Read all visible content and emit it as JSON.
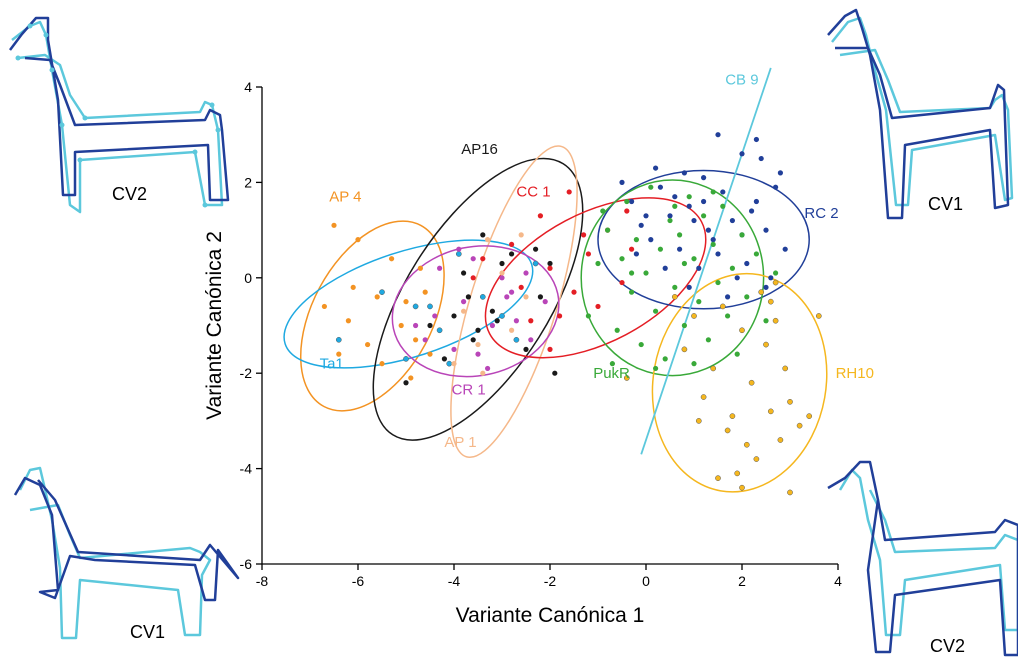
{
  "chart_data": {
    "type": "scatter",
    "xlabel": "Variante Canónica 1",
    "ylabel": "Variante Canónica 2",
    "xlim": [
      -8,
      4
    ],
    "ylim": [
      -6,
      4
    ],
    "xticks": [
      "-8",
      "-6",
      "-4",
      "-2",
      "0",
      "2",
      "4"
    ],
    "yticks": [
      "-6",
      "-4",
      "-2",
      "0",
      "2",
      "4"
    ],
    "grid": false,
    "series": [
      {
        "name": "AP 4",
        "color": "#f39323",
        "label_at": [
          -6.6,
          1.6
        ],
        "ellipse": {
          "cx": -5.7,
          "cy": -0.8,
          "rx": 2.15,
          "ry": 1.25,
          "angle": 62
        },
        "points": [
          [
            -6.5,
            1.1
          ],
          [
            -6.0,
            0.8
          ],
          [
            -6.1,
            -0.2
          ],
          [
            -6.7,
            -0.6
          ],
          [
            -6.2,
            -0.9
          ],
          [
            -5.8,
            -1.4
          ],
          [
            -5.0,
            -0.5
          ],
          [
            -5.5,
            -1.8
          ],
          [
            -4.9,
            -2.1
          ],
          [
            -4.6,
            -0.3
          ],
          [
            -5.3,
            0.4
          ],
          [
            -4.8,
            -1.3
          ],
          [
            -6.4,
            -1.6
          ],
          [
            -5.1,
            -1.0
          ],
          [
            -4.5,
            -1.6
          ],
          [
            -5.6,
            -0.4
          ],
          [
            -4.7,
            0.2
          ]
        ]
      },
      {
        "name": "Ta1",
        "color": "#1fa9e1",
        "label_at": [
          -6.8,
          -1.9
        ],
        "ellipse": {
          "cx": -4.95,
          "cy": -0.55,
          "rx": 2.7,
          "ry": 1.1,
          "angle": 18
        },
        "points": [
          [
            -6.4,
            -1.3
          ],
          [
            -5.5,
            -0.3
          ],
          [
            -4.8,
            -0.6
          ],
          [
            -4.1,
            -1.8
          ],
          [
            -3.4,
            -0.4
          ],
          [
            -2.7,
            -1.3
          ],
          [
            -2.3,
            0.3
          ],
          [
            -3.9,
            0.5
          ],
          [
            -5.0,
            -1.7
          ],
          [
            -4.3,
            -1.1
          ],
          [
            -3.0,
            -0.8
          ],
          [
            -4.5,
            -0.6
          ]
        ]
      },
      {
        "name": "AP16",
        "color": "#1a1a1a",
        "label_at": [
          -3.85,
          2.6
        ],
        "ellipse": {
          "cx": -3.5,
          "cy": -0.45,
          "rx": 3.35,
          "ry": 1.5,
          "angle": 58
        },
        "points": [
          [
            -5.0,
            -2.2
          ],
          [
            -4.5,
            -1.0
          ],
          [
            -4.0,
            -0.8
          ],
          [
            -3.7,
            -0.4
          ],
          [
            -3.5,
            -1.1
          ],
          [
            -3.2,
            -0.7
          ],
          [
            -3.0,
            0.3
          ],
          [
            -2.8,
            0.5
          ],
          [
            -2.3,
            0.6
          ],
          [
            -2.0,
            0.3
          ],
          [
            -3.4,
            0.9
          ],
          [
            -2.5,
            -1.5
          ],
          [
            -1.9,
            -2.0
          ],
          [
            -3.8,
            0.1
          ],
          [
            -4.2,
            -1.7
          ],
          [
            -3.6,
            -1.3
          ],
          [
            -2.2,
            -0.4
          ],
          [
            -3.1,
            -0.9
          ]
        ]
      },
      {
        "name": "AP 1",
        "color": "#f5b88a",
        "label_at": [
          -4.2,
          -3.55
        ],
        "ellipse": {
          "cx": -2.75,
          "cy": -0.5,
          "rx": 3.4,
          "ry": 0.9,
          "angle": 73
        },
        "points": [
          [
            -4.0,
            -1.8
          ],
          [
            -3.4,
            -2.0
          ],
          [
            -3.3,
            0.8
          ],
          [
            -3.0,
            0.1
          ],
          [
            -2.5,
            -0.4
          ],
          [
            -2.2,
            1.3
          ],
          [
            -2.8,
            -1.1
          ],
          [
            -3.5,
            -1.4
          ],
          [
            -2.6,
            0.9
          ],
          [
            -3.8,
            -0.7
          ]
        ]
      },
      {
        "name": "CR 1",
        "color": "#b945b8",
        "label_at": [
          -4.05,
          -2.45
        ],
        "ellipse": {
          "cx": -3.55,
          "cy": -0.7,
          "rx": 1.75,
          "ry": 1.35,
          "angle": 12
        },
        "points": [
          [
            -4.8,
            -1.0
          ],
          [
            -4.6,
            -1.3
          ],
          [
            -4.3,
            0.2
          ],
          [
            -3.8,
            -0.5
          ],
          [
            -3.5,
            -1.6
          ],
          [
            -3.2,
            -1.0
          ],
          [
            -3.0,
            0.0
          ],
          [
            -2.8,
            -0.3
          ],
          [
            -2.5,
            0.1
          ],
          [
            -2.1,
            -0.5
          ],
          [
            -4.0,
            -1.5
          ],
          [
            -3.3,
            -1.9
          ],
          [
            -2.7,
            -0.9
          ],
          [
            -3.6,
            0.4
          ],
          [
            -2.4,
            -1.3
          ],
          [
            -4.4,
            -0.8
          ],
          [
            -3.9,
            0.6
          ],
          [
            -2.9,
            -0.4
          ]
        ]
      },
      {
        "name": "CC 1",
        "color": "#e41e25",
        "label_at": [
          -2.7,
          1.7
        ],
        "ellipse": {
          "cx": -1.05,
          "cy": 0.0,
          "rx": 2.5,
          "ry": 1.35,
          "angle": 28
        },
        "points": [
          [
            -1.6,
            1.8
          ],
          [
            -2.2,
            1.3
          ],
          [
            -2.8,
            0.7
          ],
          [
            -3.4,
            0.4
          ],
          [
            -2.0,
            0.2
          ],
          [
            -1.2,
            0.5
          ],
          [
            -0.8,
            1.0
          ],
          [
            -0.4,
            1.4
          ],
          [
            -1.5,
            -0.3
          ],
          [
            -2.4,
            -0.9
          ],
          [
            -2.0,
            -1.5
          ],
          [
            -1.0,
            -0.6
          ],
          [
            -0.5,
            -0.1
          ],
          [
            -1.8,
            -0.8
          ],
          [
            -2.6,
            -0.2
          ],
          [
            -0.3,
            0.6
          ],
          [
            -1.3,
            0.9
          ],
          [
            -3.6,
            0.0
          ]
        ]
      },
      {
        "name": "RC 2",
        "color": "#213f99",
        "label_at": [
          3.3,
          1.25
        ],
        "ellipse": {
          "cx": 1.2,
          "cy": 0.8,
          "rx": 2.2,
          "ry": 1.45,
          "angle": 0
        },
        "points": [
          [
            -0.5,
            2.0
          ],
          [
            -0.3,
            1.6
          ],
          [
            0.0,
            1.3
          ],
          [
            0.1,
            0.8
          ],
          [
            0.3,
            1.9
          ],
          [
            0.5,
            1.3
          ],
          [
            0.7,
            0.6
          ],
          [
            0.9,
            1.5
          ],
          [
            1.1,
            0.2
          ],
          [
            1.2,
            2.1
          ],
          [
            1.3,
            1.0
          ],
          [
            1.5,
            0.5
          ],
          [
            1.6,
            1.8
          ],
          [
            1.8,
            1.2
          ],
          [
            2.0,
            0.9
          ],
          [
            2.1,
            0.3
          ],
          [
            2.3,
            1.6
          ],
          [
            2.4,
            2.5
          ],
          [
            2.5,
            1.0
          ],
          [
            2.6,
            0.0
          ],
          [
            2.7,
            1.9
          ],
          [
            2.8,
            2.2
          ],
          [
            2.0,
            2.6
          ],
          [
            1.7,
            -0.4
          ],
          [
            1.4,
            0.8
          ],
          [
            0.8,
            2.2
          ],
          [
            0.4,
            0.2
          ],
          [
            -0.2,
            0.5
          ],
          [
            2.2,
            1.4
          ],
          [
            1.0,
            1.2
          ],
          [
            1.9,
            0.0
          ],
          [
            2.5,
            -0.2
          ],
          [
            2.9,
            0.6
          ],
          [
            0.6,
            1.7
          ],
          [
            1.5,
            3.0
          ],
          [
            2.3,
            2.9
          ],
          [
            0.2,
            2.3
          ],
          [
            1.2,
            1.6
          ],
          [
            0.9,
            -0.2
          ],
          [
            -0.1,
            1.1
          ]
        ]
      },
      {
        "name": "PukR",
        "color": "#39a939",
        "label_at": [
          -1.1,
          -2.1
        ],
        "ellipse": {
          "cx": 0.55,
          "cy": 0.0,
          "rx": 1.9,
          "ry": 2.05,
          "angle": 0
        },
        "points": [
          [
            -1.2,
            -0.8
          ],
          [
            -1.0,
            0.3
          ],
          [
            -0.8,
            1.0
          ],
          [
            -0.6,
            -1.1
          ],
          [
            -0.5,
            0.4
          ],
          [
            -0.4,
            1.6
          ],
          [
            -0.3,
            -0.3
          ],
          [
            -0.2,
            0.8
          ],
          [
            -0.1,
            -1.4
          ],
          [
            0.0,
            0.1
          ],
          [
            0.1,
            1.9
          ],
          [
            0.2,
            -0.7
          ],
          [
            0.3,
            0.6
          ],
          [
            0.4,
            -1.7
          ],
          [
            0.5,
            1.2
          ],
          [
            0.6,
            -0.2
          ],
          [
            0.7,
            0.9
          ],
          [
            0.8,
            -1.0
          ],
          [
            0.9,
            1.7
          ],
          [
            1.0,
            0.4
          ],
          [
            1.1,
            -0.5
          ],
          [
            1.2,
            1.3
          ],
          [
            1.3,
            -1.3
          ],
          [
            1.4,
            0.7
          ],
          [
            1.5,
            -0.1
          ],
          [
            1.6,
            1.5
          ],
          [
            1.7,
            -0.8
          ],
          [
            1.8,
            0.2
          ],
          [
            1.9,
            -1.6
          ],
          [
            2.0,
            0.9
          ],
          [
            2.1,
            -0.4
          ],
          [
            2.3,
            0.5
          ],
          [
            2.5,
            -0.9
          ],
          [
            2.7,
            0.1
          ],
          [
            -0.7,
            -1.8
          ],
          [
            0.2,
            -1.9
          ],
          [
            1.0,
            -1.8
          ],
          [
            0.6,
            1.5
          ],
          [
            1.4,
            1.8
          ],
          [
            -0.9,
            1.4
          ],
          [
            -0.3,
            0.1
          ],
          [
            0.8,
            0.3
          ]
        ]
      },
      {
        "name": "RH10",
        "color": "#f5b71f",
        "label_at": [
          3.95,
          -2.1
        ],
        "ellipse": {
          "cx": 1.95,
          "cy": -2.2,
          "rx": 1.8,
          "ry": 2.3,
          "angle": -10
        },
        "points": [
          [
            0.6,
            -0.4
          ],
          [
            0.8,
            -1.5
          ],
          [
            1.0,
            -0.8
          ],
          [
            1.2,
            -2.5
          ],
          [
            1.4,
            -1.9
          ],
          [
            1.6,
            -0.6
          ],
          [
            1.8,
            -2.9
          ],
          [
            2.0,
            -1.1
          ],
          [
            2.1,
            -3.5
          ],
          [
            2.2,
            -2.2
          ],
          [
            2.4,
            -0.3
          ],
          [
            2.5,
            -1.4
          ],
          [
            2.6,
            -2.8
          ],
          [
            2.7,
            -0.9
          ],
          [
            2.8,
            -3.4
          ],
          [
            2.9,
            -1.9
          ],
          [
            3.0,
            -2.6
          ],
          [
            3.2,
            -3.1
          ],
          [
            3.4,
            -2.9
          ],
          [
            3.6,
            -0.8
          ],
          [
            1.9,
            -4.1
          ],
          [
            2.0,
            -4.4
          ],
          [
            1.5,
            -4.2
          ],
          [
            2.3,
            -3.8
          ],
          [
            1.1,
            -3.0
          ],
          [
            3.0,
            -4.5
          ],
          [
            2.6,
            -0.5
          ],
          [
            -0.4,
            -2.1
          ],
          [
            2.7,
            -0.1
          ],
          [
            1.7,
            -3.2
          ]
        ]
      }
    ],
    "line": {
      "name": "CB 9",
      "color": "#5cc8dc",
      "from": [
        -0.1,
        -3.7
      ],
      "to": [
        2.6,
        4.4
      ],
      "label_at": [
        1.65,
        4.05
      ]
    }
  },
  "figures": {
    "top_left_label": "CV2",
    "top_right_label": "CV1",
    "bottom_left_label": "CV1",
    "bottom_right_label": "CV2"
  }
}
